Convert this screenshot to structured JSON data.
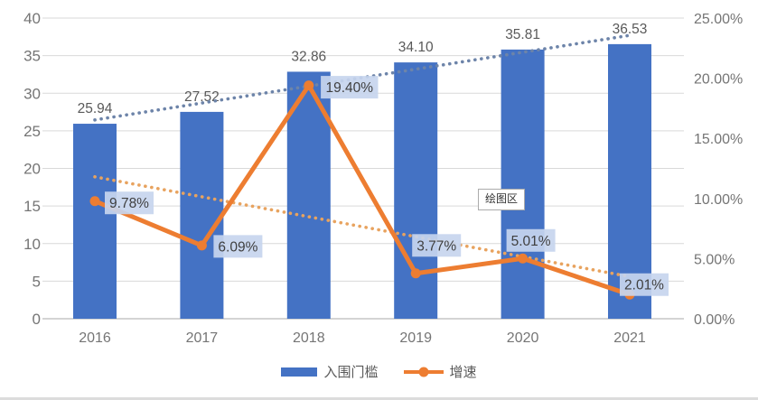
{
  "chart_data": {
    "type": "combo",
    "title": "",
    "categories": [
      "2016",
      "2017",
      "2018",
      "2019",
      "2020",
      "2021"
    ],
    "series": [
      {
        "name": "入围门槛",
        "type": "bar",
        "axis": "left",
        "color": "#4472C4",
        "values": [
          25.94,
          27.52,
          32.86,
          34.1,
          35.81,
          36.53
        ],
        "labels": [
          "25.94",
          "27.52",
          "32.86",
          "34.10",
          "35.81",
          "36.53"
        ]
      },
      {
        "name": "增速",
        "type": "line",
        "axis": "right",
        "color": "#ED7D31",
        "values": [
          9.78,
          6.09,
          19.4,
          3.77,
          5.01,
          2.01
        ],
        "labels": [
          "9.78%",
          "6.09%",
          "19.40%",
          "3.77%",
          "5.01%",
          "2.01%"
        ]
      }
    ],
    "trendlines": [
      {
        "of": "入围门槛",
        "axis": "left",
        "style": "dotted",
        "color": "#6d84a9",
        "start": 26.45,
        "end": 37.7
      },
      {
        "of": "增速",
        "axis": "right",
        "style": "dotted",
        "color": "#e8a35f",
        "start": 11.8,
        "end": 3.5
      }
    ],
    "left_axis": {
      "min": 0,
      "max": 40,
      "step": 5,
      "ticks": [
        "0",
        "5",
        "10",
        "15",
        "20",
        "25",
        "30",
        "35",
        "40"
      ]
    },
    "right_axis": {
      "min": 0,
      "max": 25,
      "step": 5,
      "ticks": [
        "0.00%",
        "5.00%",
        "10.00%",
        "15.00%",
        "20.00%",
        "25.00%"
      ]
    },
    "grid": true,
    "legend_position": "bottom",
    "annotations": {
      "plot_area_tooltip": "绘图区"
    },
    "colors": {
      "grid": "#d9d9d9",
      "axis_line": "#c6c6c6",
      "axis_text": "#757575",
      "bar_label_text": "#595959",
      "line_label_text": "#3f3f3f",
      "line_label_bg": "#c7d5ee"
    },
    "label_offsets": {
      "line": [
        [
          38,
          2
        ],
        [
          40,
          1
        ],
        [
          45,
          2
        ],
        [
          23,
          -31
        ],
        [
          9,
          -20
        ],
        [
          16,
          -11
        ]
      ]
    }
  }
}
